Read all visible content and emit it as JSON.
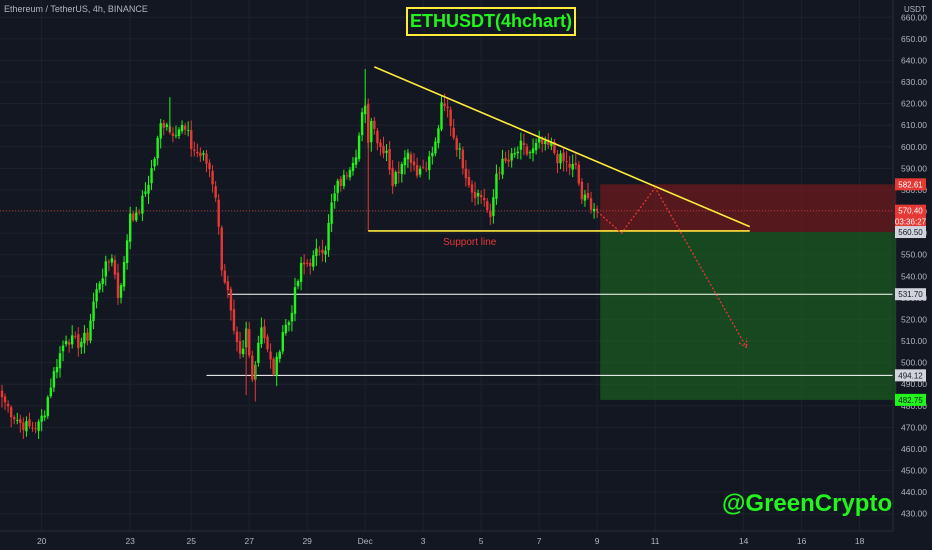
{
  "header": {
    "ticker_info": "Ethereum / TetherUS, 4h, BINANCE",
    "chart_title": "ETHUSDT(4hchart)",
    "watermark": "@GreenCrypto",
    "support_label": "Support line"
  },
  "colors": {
    "background": "#131722",
    "bull": "#22f51b",
    "bear": "#e53935",
    "trendline": "#ffeb3b",
    "support": "#ffeb3b",
    "horizontal": "#ffffff",
    "profit_zone": "#1b5e20",
    "loss_zone": "#8b1a1a",
    "projection": "#e53935"
  },
  "chart_data": {
    "type": "candlestick",
    "symbol": "ETHUSDT",
    "timeframe": "4h",
    "exchange": "BINANCE",
    "y_unit": "USDT",
    "ylim": [
      422,
      668
    ],
    "y_ticks": [
      430,
      440,
      450,
      460,
      470,
      480,
      490,
      500,
      510,
      520,
      530,
      540,
      550,
      560,
      570,
      580,
      590,
      600,
      610,
      620,
      630,
      640,
      650,
      660
    ],
    "x_ticks": [
      {
        "label": "20",
        "slot": 13
      },
      {
        "label": "23",
        "slot": 42
      },
      {
        "label": "25",
        "slot": 62
      },
      {
        "label": "27",
        "slot": 81
      },
      {
        "label": "29",
        "slot": 100
      },
      {
        "label": "Dec",
        "slot": 119
      },
      {
        "label": "3",
        "slot": 138
      },
      {
        "label": "5",
        "slot": 157
      },
      {
        "label": "7",
        "slot": 176
      },
      {
        "label": "9",
        "slot": 195
      },
      {
        "label": "11",
        "slot": 214
      },
      {
        "label": "14",
        "slot": 243
      },
      {
        "label": "16",
        "slot": 262
      },
      {
        "label": "18",
        "slot": 281
      }
    ],
    "close_path": [
      [
        0,
        484
      ],
      [
        3,
        477
      ],
      [
        6,
        472
      ],
      [
        9,
        470
      ],
      [
        12,
        471
      ],
      [
        14,
        478
      ],
      [
        16,
        490
      ],
      [
        18,
        500
      ],
      [
        21,
        512
      ],
      [
        23,
        510
      ],
      [
        25,
        509
      ],
      [
        28,
        512
      ],
      [
        30,
        528
      ],
      [
        32,
        538
      ],
      [
        34,
        544
      ],
      [
        36,
        550
      ],
      [
        38,
        531
      ],
      [
        40,
        545
      ],
      [
        42,
        570
      ],
      [
        44,
        567
      ],
      [
        46,
        575
      ],
      [
        48,
        584
      ],
      [
        50,
        595
      ],
      [
        52,
        610
      ],
      [
        54,
        612
      ],
      [
        55,
        607
      ],
      [
        57,
        608
      ],
      [
        59,
        609
      ],
      [
        61,
        605
      ],
      [
        62,
        600
      ],
      [
        64,
        597
      ],
      [
        66,
        595
      ],
      [
        68,
        590
      ],
      [
        70,
        578
      ],
      [
        72,
        545
      ],
      [
        74,
        532
      ],
      [
        76,
        512
      ],
      [
        77,
        507
      ],
      [
        78,
        502
      ],
      [
        79,
        505
      ],
      [
        80,
        515
      ],
      [
        81,
        503
      ],
      [
        82,
        495
      ],
      [
        83,
        500
      ],
      [
        84,
        510
      ],
      [
        85,
        518
      ],
      [
        86,
        512
      ],
      [
        87,
        505
      ],
      [
        88,
        500
      ],
      [
        89,
        496
      ],
      [
        90,
        500
      ],
      [
        91,
        508
      ],
      [
        92,
        515
      ],
      [
        94,
        519
      ],
      [
        96,
        532
      ],
      [
        98,
        544
      ],
      [
        100,
        546
      ],
      [
        102,
        548
      ],
      [
        104,
        553
      ],
      [
        106,
        554
      ],
      [
        108,
        573
      ],
      [
        110,
        582
      ],
      [
        112,
        585
      ],
      [
        114,
        592
      ],
      [
        116,
        598
      ],
      [
        117,
        605
      ],
      [
        118,
        614
      ],
      [
        119,
        617
      ],
      [
        120,
        604
      ],
      [
        121,
        612
      ],
      [
        122,
        611
      ],
      [
        123,
        603
      ],
      [
        124,
        600
      ],
      [
        126,
        599
      ],
      [
        128,
        583
      ],
      [
        130,
        590
      ],
      [
        132,
        598
      ],
      [
        134,
        595
      ],
      [
        136,
        589
      ],
      [
        138,
        591
      ],
      [
        140,
        594
      ],
      [
        142,
        601
      ],
      [
        144,
        618
      ],
      [
        146,
        617
      ],
      [
        148,
        605
      ],
      [
        150,
        597
      ],
      [
        152,
        588
      ],
      [
        154,
        580
      ],
      [
        156,
        578
      ],
      [
        158,
        576
      ],
      [
        160,
        565
      ],
      [
        162,
        588
      ],
      [
        164,
        592
      ],
      [
        166,
        593
      ],
      [
        168,
        596
      ],
      [
        170,
        600
      ],
      [
        172,
        597
      ],
      [
        174,
        598
      ],
      [
        176,
        602
      ],
      [
        178,
        600
      ],
      [
        180,
        600
      ],
      [
        182,
        595
      ],
      [
        184,
        593
      ],
      [
        186,
        591
      ],
      [
        188,
        590
      ],
      [
        190,
        576
      ],
      [
        192,
        575
      ],
      [
        194,
        572
      ],
      [
        195,
        570.4
      ]
    ],
    "levels": [
      {
        "value": 582.61,
        "label": "582.61",
        "badge_color": "#e53935"
      },
      {
        "value": 570.4,
        "label": "570.40",
        "badge_color": "#e53935"
      },
      {
        "value": 565.5,
        "label": "03:36:27",
        "badge_color": "#e53935"
      },
      {
        "value": 560.5,
        "label": "560.50",
        "badge_color": "#d1d4dc"
      },
      {
        "value": 531.7,
        "label": "531.70",
        "badge_color": "#d1d4dc"
      },
      {
        "value": 494.12,
        "label": "494.12",
        "badge_color": "#d1d4dc"
      },
      {
        "value": 482.75,
        "label": "482.75",
        "badge_color": "#22f51b"
      }
    ],
    "trendline": {
      "start": [
        122,
        637
      ],
      "end": [
        245,
        563
      ]
    },
    "support_line": {
      "start": [
        120,
        561
      ],
      "end": [
        245,
        561
      ]
    },
    "horizontal_lines": [
      {
        "value": 531.7,
        "start_slot": 74
      },
      {
        "value": 494.12,
        "start_slot": 67
      }
    ],
    "zones": [
      {
        "kind": "loss",
        "from_slot": 196,
        "to_slot": 293,
        "y_top": 582.61,
        "y_bottom": 560.5
      },
      {
        "kind": "profit",
        "from_slot": 196,
        "to_slot": 293,
        "y_top": 560.5,
        "y_bottom": 482.75
      }
    ],
    "projection_path": [
      [
        195,
        570
      ],
      [
        203,
        560
      ],
      [
        214,
        581
      ],
      [
        244,
        507
      ]
    ]
  }
}
